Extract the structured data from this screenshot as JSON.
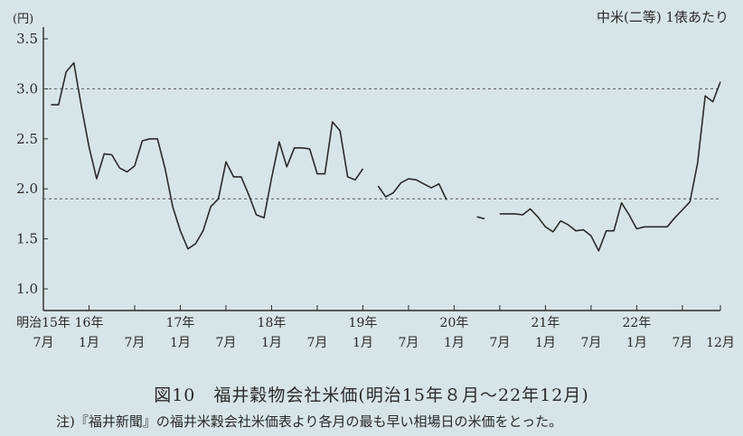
{
  "caption": "図10　福井穀物会社米価(明治15年８月〜22年12月)",
  "note": "注)『福井新聞』の福井米穀会社米価表より各月の最も早い相場日の米価をとった。",
  "chart_data": {
    "type": "line",
    "title": "",
    "legend_text": "中米(二等) 1俵あたり",
    "ylabel": "(円)",
    "ylim": [
      1.0,
      3.5
    ],
    "yticks": [
      "3.5",
      "3.0",
      "2.5",
      "2.0",
      "1.5",
      "1.0"
    ],
    "ytick_values": [
      3.5,
      3.0,
      2.5,
      2.0,
      1.5,
      1.0
    ],
    "reference_lines": [
      3.0,
      1.9
    ],
    "xtick_labels": [
      {
        "month": 0,
        "top": "明治15年",
        "bottom": "7月"
      },
      {
        "month": 6,
        "top": "16年",
        "bottom": "1月"
      },
      {
        "month": 12,
        "top": "",
        "bottom": "7月"
      },
      {
        "month": 18,
        "top": "17年",
        "bottom": "1月"
      },
      {
        "month": 24,
        "top": "",
        "bottom": "7月"
      },
      {
        "month": 30,
        "top": "18年",
        "bottom": "1月"
      },
      {
        "month": 36,
        "top": "",
        "bottom": "7月"
      },
      {
        "month": 42,
        "top": "19年",
        "bottom": "1月"
      },
      {
        "month": 48,
        "top": "",
        "bottom": "7月"
      },
      {
        "month": 54,
        "top": "20年",
        "bottom": "1月"
      },
      {
        "month": 60,
        "top": "",
        "bottom": "7月"
      },
      {
        "month": 66,
        "top": "21年",
        "bottom": "1月"
      },
      {
        "month": 72,
        "top": "",
        "bottom": "7月"
      },
      {
        "month": 78,
        "top": "22年",
        "bottom": "1月"
      },
      {
        "month": 84,
        "top": "",
        "bottom": "7月"
      },
      {
        "month": 89,
        "top": "",
        "bottom": "12月"
      }
    ],
    "series": [
      {
        "name": "",
        "segments": [
          [
            [
              1,
              2.84
            ],
            [
              2,
              2.84
            ],
            [
              3,
              3.17
            ],
            [
              4,
              3.26
            ],
            [
              5,
              2.82
            ],
            [
              6,
              2.42
            ],
            [
              7,
              2.1
            ],
            [
              8,
              2.35
            ],
            [
              9,
              2.34
            ],
            [
              10,
              2.21
            ],
            [
              11,
              2.17
            ],
            [
              12,
              2.23
            ],
            [
              13,
              2.48
            ],
            [
              14,
              2.5
            ],
            [
              15,
              2.5
            ],
            [
              16,
              2.2
            ],
            [
              17,
              1.82
            ],
            [
              18,
              1.58
            ],
            [
              19,
              1.4
            ],
            [
              20,
              1.45
            ],
            [
              21,
              1.58
            ],
            [
              22,
              1.82
            ],
            [
              23,
              1.9
            ],
            [
              24,
              2.27
            ],
            [
              25,
              2.12
            ],
            [
              26,
              2.12
            ],
            [
              27,
              1.94
            ],
            [
              28,
              1.74
            ],
            [
              29,
              1.71
            ],
            [
              30,
              2.11
            ],
            [
              31,
              2.47
            ],
            [
              32,
              2.22
            ],
            [
              33,
              2.41
            ],
            [
              34,
              2.41
            ],
            [
              35,
              2.4
            ],
            [
              36,
              2.15
            ],
            [
              37,
              2.15
            ],
            [
              38,
              2.67
            ],
            [
              39,
              2.58
            ],
            [
              40,
              2.12
            ],
            [
              41,
              2.09
            ],
            [
              42,
              2.2
            ]
          ],
          [
            [
              44,
              2.03
            ],
            [
              45,
              1.92
            ],
            [
              46,
              1.96
            ],
            [
              47,
              2.06
            ],
            [
              48,
              2.1
            ],
            [
              49,
              2.09
            ],
            [
              50,
              2.05
            ],
            [
              51,
              2.01
            ],
            [
              52,
              2.05
            ],
            [
              53,
              1.89
            ]
          ],
          [
            [
              57,
              1.72
            ],
            [
              58,
              1.7
            ]
          ],
          [
            [
              60,
              1.75
            ],
            [
              61,
              1.75
            ],
            [
              62,
              1.75
            ],
            [
              63,
              1.74
            ],
            [
              64,
              1.8
            ],
            [
              65,
              1.72
            ],
            [
              66,
              1.62
            ],
            [
              67,
              1.57
            ],
            [
              68,
              1.68
            ],
            [
              69,
              1.64
            ],
            [
              70,
              1.58
            ],
            [
              71,
              1.59
            ],
            [
              72,
              1.53
            ],
            [
              73,
              1.38
            ],
            [
              74,
              1.58
            ],
            [
              75,
              1.58
            ],
            [
              76,
              1.86
            ],
            [
              77,
              1.74
            ],
            [
              78,
              1.6
            ],
            [
              79,
              1.62
            ],
            [
              80,
              1.62
            ],
            [
              81,
              1.62
            ],
            [
              82,
              1.62
            ],
            [
              83,
              1.71
            ],
            [
              84,
              1.79
            ],
            [
              85,
              1.87
            ],
            [
              86,
              2.26
            ],
            [
              87,
              2.93
            ],
            [
              88,
              2.87
            ],
            [
              89,
              3.07
            ]
          ]
        ]
      }
    ]
  }
}
